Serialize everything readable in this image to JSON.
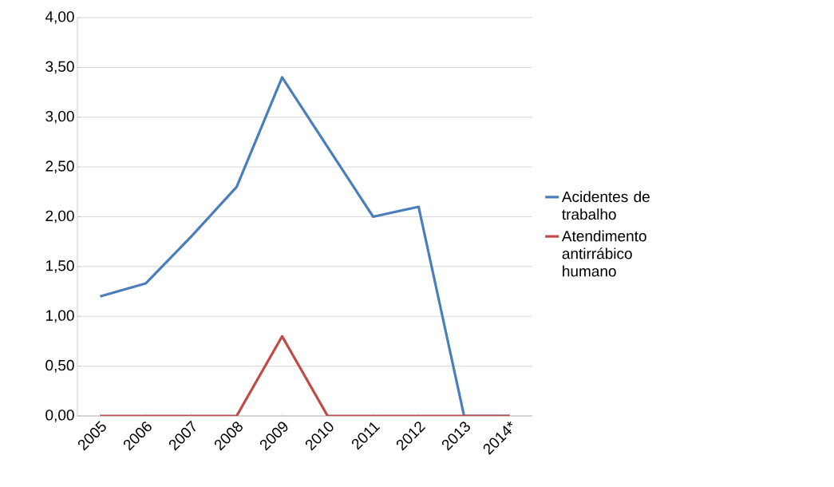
{
  "chart_data": {
    "type": "line",
    "categories": [
      "2005",
      "2006",
      "2007",
      "2008",
      "2009",
      "2010",
      "2011",
      "2012",
      "2013",
      "2014*"
    ],
    "series": [
      {
        "name": "Acidentes de trabalho",
        "color": "#4a7ebb",
        "values": [
          1.2,
          1.33,
          1.8,
          2.3,
          3.4,
          2.7,
          2.0,
          2.1,
          0,
          0
        ]
      },
      {
        "name": "Atendimento antirrábico humano",
        "color": "#be4b48",
        "values": [
          0,
          0,
          0,
          0,
          0.8,
          0,
          0,
          0,
          0,
          0
        ]
      }
    ],
    "ylim": [
      0,
      4
    ],
    "yticks": [
      {
        "value": 0,
        "label": "0,00"
      },
      {
        "value": 0.5,
        "label": "0,50"
      },
      {
        "value": 1,
        "label": "1,00"
      },
      {
        "value": 1.5,
        "label": "1,50"
      },
      {
        "value": 2,
        "label": "2,00"
      },
      {
        "value": 2.5,
        "label": "2,50"
      },
      {
        "value": 3,
        "label": "3,00"
      },
      {
        "value": 3.5,
        "label": "3,50"
      },
      {
        "value": 4,
        "label": "4,00"
      }
    ],
    "grid": "y",
    "legend": "right",
    "marker": "none",
    "line_style": "solid"
  }
}
